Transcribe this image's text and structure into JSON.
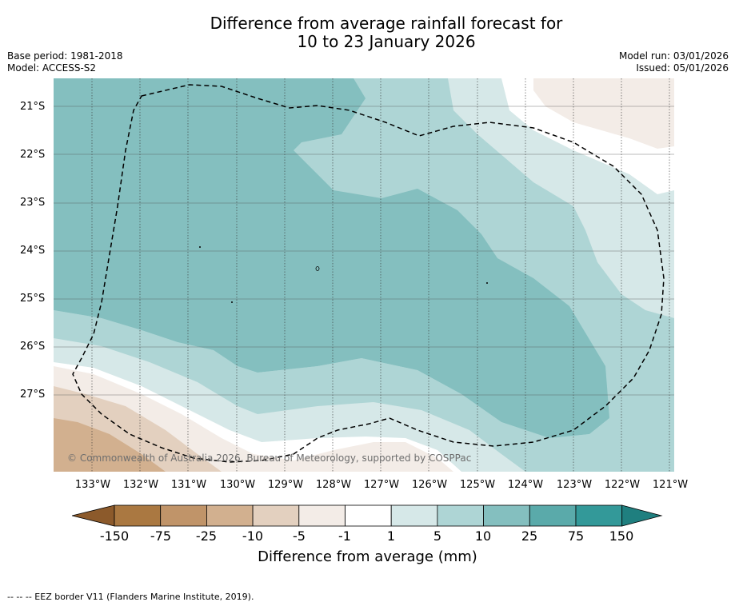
{
  "title": {
    "line1": "Difference from average rainfall forecast for",
    "line2": "10 to 23 January 2026"
  },
  "meta": {
    "base_period": "Base period: 1981-2018",
    "model": "Model: ACCESS-S2",
    "model_run": "Model run: 03/01/2026",
    "issued": "Issued: 05/01/2026"
  },
  "axes": {
    "latitudes": [
      "21°S",
      "22°S",
      "23°S",
      "24°S",
      "25°S",
      "26°S",
      "27°S"
    ],
    "longitudes": [
      "133°W",
      "132°W",
      "131°W",
      "130°W",
      "129°W",
      "128°W",
      "127°W",
      "126°W",
      "125°W",
      "124°W",
      "123°W",
      "122°W",
      "121°W"
    ]
  },
  "colorbar": {
    "ticks": [
      "-150",
      "-75",
      "-25",
      "-10",
      "-5",
      "-1",
      "1",
      "5",
      "10",
      "25",
      "75",
      "150"
    ],
    "label": "Difference from average (mm)",
    "colors": {
      "below_150": "#8c5a2b",
      "-150_-75": "#aa7841",
      "-75_-25": "#c09469",
      "-25_-10": "#d2b08f",
      "-10_-5": "#e3d0bf",
      "-5_-1": "#f3ece7",
      "-1_1": "#ffffff",
      "1_5": "#d6e8e8",
      "5_10": "#aed5d5",
      "10_25": "#84bfbf",
      "25_75": "#5aaaaa",
      "75_150": "#339999",
      "above_150": "#1f7f7f"
    }
  },
  "copyright": "© Commonwealth of Australia 2026, Bureau of Meteorology, supported by COSPPac",
  "footnote": "-- --  -- EEZ border V11 (Flanders Marine Institute, 2019)."
}
